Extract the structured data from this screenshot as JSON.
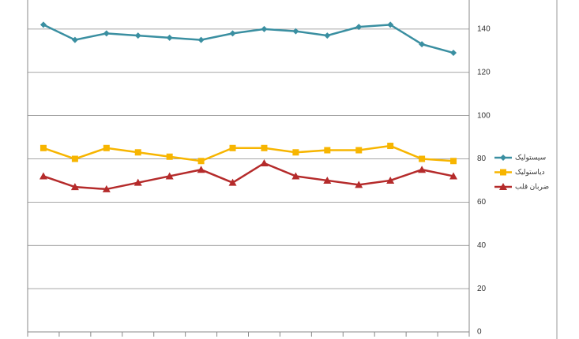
{
  "chart_data": {
    "type": "line",
    "categories": [
      null,
      null,
      null,
      null,
      null,
      null,
      null,
      null,
      null,
      null,
      null,
      null,
      null,
      null
    ],
    "series": [
      {
        "name": "سیستولیک",
        "color": "#3a8fa1",
        "marker": "diamond",
        "values": [
          142,
          135,
          138,
          137,
          136,
          135,
          138,
          140,
          139,
          137,
          141,
          142,
          133,
          129
        ]
      },
      {
        "name": "دیاستولیک",
        "color": "#f7b500",
        "marker": "square",
        "values": [
          85,
          80,
          85,
          83,
          81,
          79,
          85,
          85,
          83,
          84,
          84,
          86,
          80,
          79
        ]
      },
      {
        "name": "ضربان قلب",
        "color": "#b52b2b",
        "marker": "triangle",
        "values": [
          72,
          67,
          66,
          69,
          72,
          75,
          69,
          78,
          72,
          70,
          68,
          70,
          75,
          72
        ]
      }
    ],
    "ylim": [
      0,
      160
    ],
    "yticks": [
      0,
      20,
      40,
      60,
      80,
      100,
      120,
      140
    ],
    "grid": true,
    "y_axis_side": "right",
    "legend": "right"
  }
}
